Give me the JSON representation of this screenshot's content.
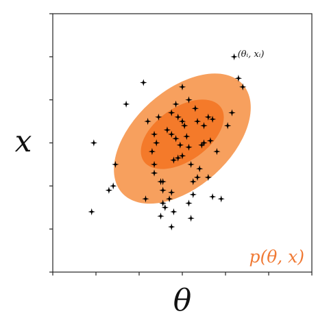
{
  "labels": {
    "y_axis": "x",
    "x_axis": "θ",
    "distribution": "p(θ, x)",
    "sample_point": "(θᵢ, xᵢ)"
  },
  "colors": {
    "outer_ellipse": "#f7a05e",
    "inner_ellipse": "#f47a2a",
    "distribution_label": "#f07a35",
    "points": "#000000",
    "axes": "#222222"
  },
  "icons": {
    "point_marker": "four-point-star"
  },
  "chart_data": {
    "type": "scatter",
    "title": "",
    "xlabel": "θ",
    "ylabel": "x",
    "xlim": [
      0,
      6
    ],
    "ylim": [
      0,
      6
    ],
    "grid": false,
    "legend": "bottom-right",
    "contours": [
      {
        "level": "outer",
        "center": [
          3.0,
          3.1
        ],
        "rx": 1.88,
        "ry": 1.12,
        "angle_deg": -42
      },
      {
        "level": "inner",
        "center": [
          3.0,
          3.2
        ],
        "rx": 1.09,
        "ry": 0.62,
        "angle_deg": -35
      }
    ],
    "points": {
      "x": [
        4.2,
        4.3,
        4.4,
        2.1,
        3.0,
        0.95,
        1.45,
        1.4,
        1.3,
        0.9,
        2.55,
        3.8,
        2.2,
        2.75,
        4.15,
        3.5,
        3.15,
        3.3,
        3.35,
        3.0,
        2.35,
        2.65,
        3.6,
        2.75,
        1.7,
        2.45,
        2.85,
        2.4,
        3.5,
        4.05,
        2.85,
        3.1,
        3.65,
        3.15,
        3.45,
        2.3,
        2.9,
        2.8,
        2.95,
        3.0,
        3.2,
        2.5,
        3.25,
        2.55,
        3.35,
        2.15,
        3.15,
        2.75,
        2.55,
        2.35,
        3.6,
        3.4,
        3.25,
        2.8,
        2.6,
        3.7,
        3.9,
        3.2,
        2.5,
        2.7,
        3.05,
        2.9,
        3.7,
        2.35,
        2.75
      ],
      "y": [
        5.0,
        4.5,
        4.3,
        4.4,
        4.3,
        3.0,
        2.5,
        2.0,
        1.9,
        1.4,
        2.1,
        2.8,
        3.5,
        3.7,
        3.7,
        3.4,
        4.0,
        3.8,
        3.5,
        3.5,
        3.2,
        3.3,
        3.6,
        3.2,
        3.9,
        3.6,
        3.9,
        3.0,
        3.0,
        3.4,
        3.1,
        3.15,
        3.05,
        2.9,
        2.95,
        2.8,
        2.65,
        2.6,
        2.95,
        2.7,
        2.5,
        2.1,
        2.1,
        1.9,
        2.2,
        1.7,
        1.6,
        1.85,
        1.6,
        2.3,
        2.2,
        2.4,
        1.8,
        1.4,
        1.5,
        1.75,
        1.7,
        1.25,
        1.3,
        1.7,
        3.4,
        3.6,
        3.55,
        2.5,
        1.05
      ]
    }
  }
}
